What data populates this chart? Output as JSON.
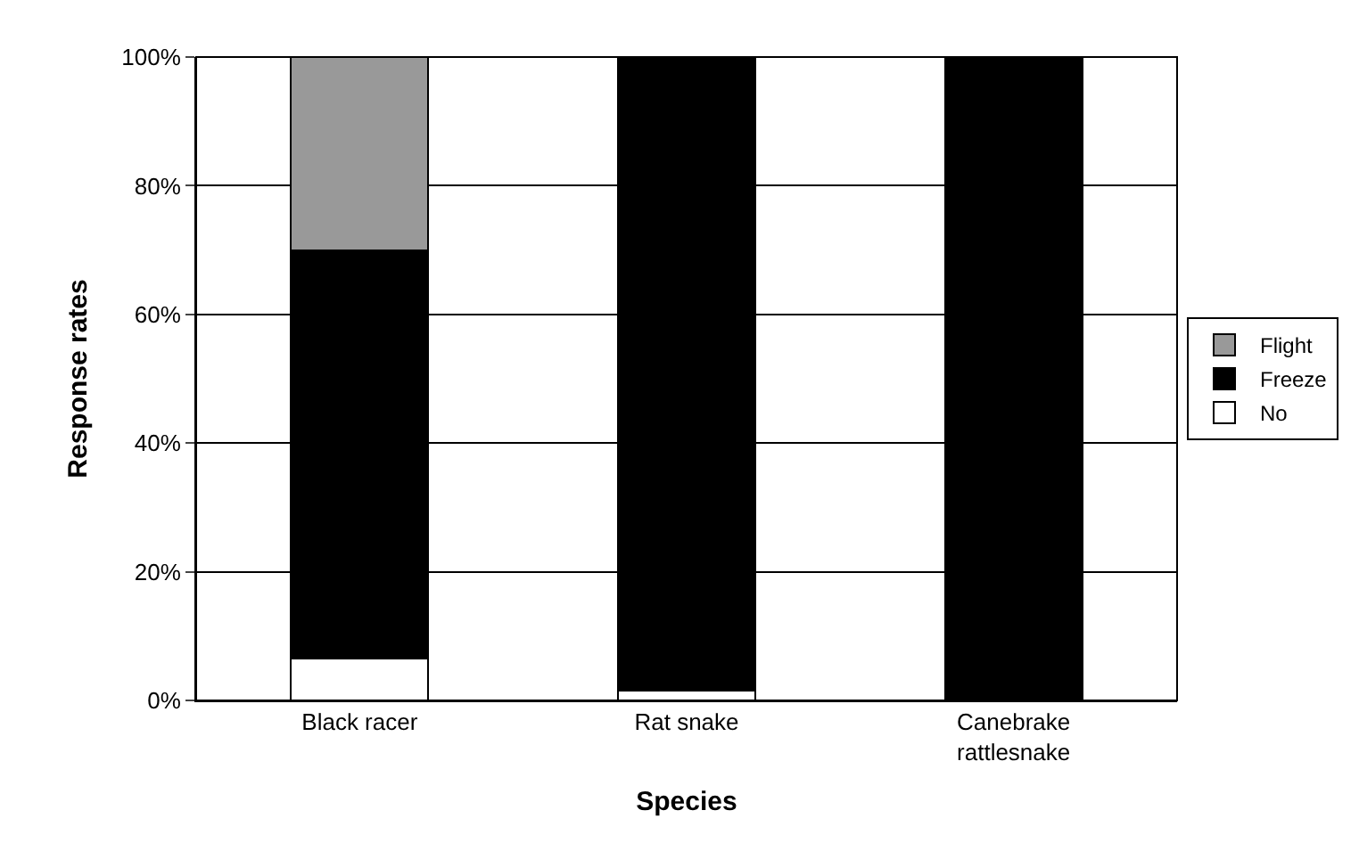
{
  "chart_data": {
    "type": "bar",
    "stacked": true,
    "xlabel": "Species",
    "ylabel": "Response rates",
    "categories": [
      "Black racer",
      "Rat snake",
      "Canebrake rattlesnake"
    ],
    "series": [
      {
        "name": "No",
        "color": "#ffffff",
        "values": [
          6.5,
          1.5,
          0
        ]
      },
      {
        "name": "Freeze",
        "color": "#000000",
        "values": [
          63.5,
          98.5,
          100
        ]
      },
      {
        "name": "Flight",
        "color": "#999999",
        "values": [
          30,
          0,
          0
        ]
      }
    ],
    "ylim": [
      0,
      100
    ],
    "yticks": [
      {
        "value": 0,
        "label": "0%"
      },
      {
        "value": 20,
        "label": "20%"
      },
      {
        "value": 40,
        "label": "40%"
      },
      {
        "value": 60,
        "label": "60%"
      },
      {
        "value": 80,
        "label": "80%"
      },
      {
        "value": 100,
        "label": "100%"
      }
    ],
    "grid": "y",
    "legend": "right"
  }
}
